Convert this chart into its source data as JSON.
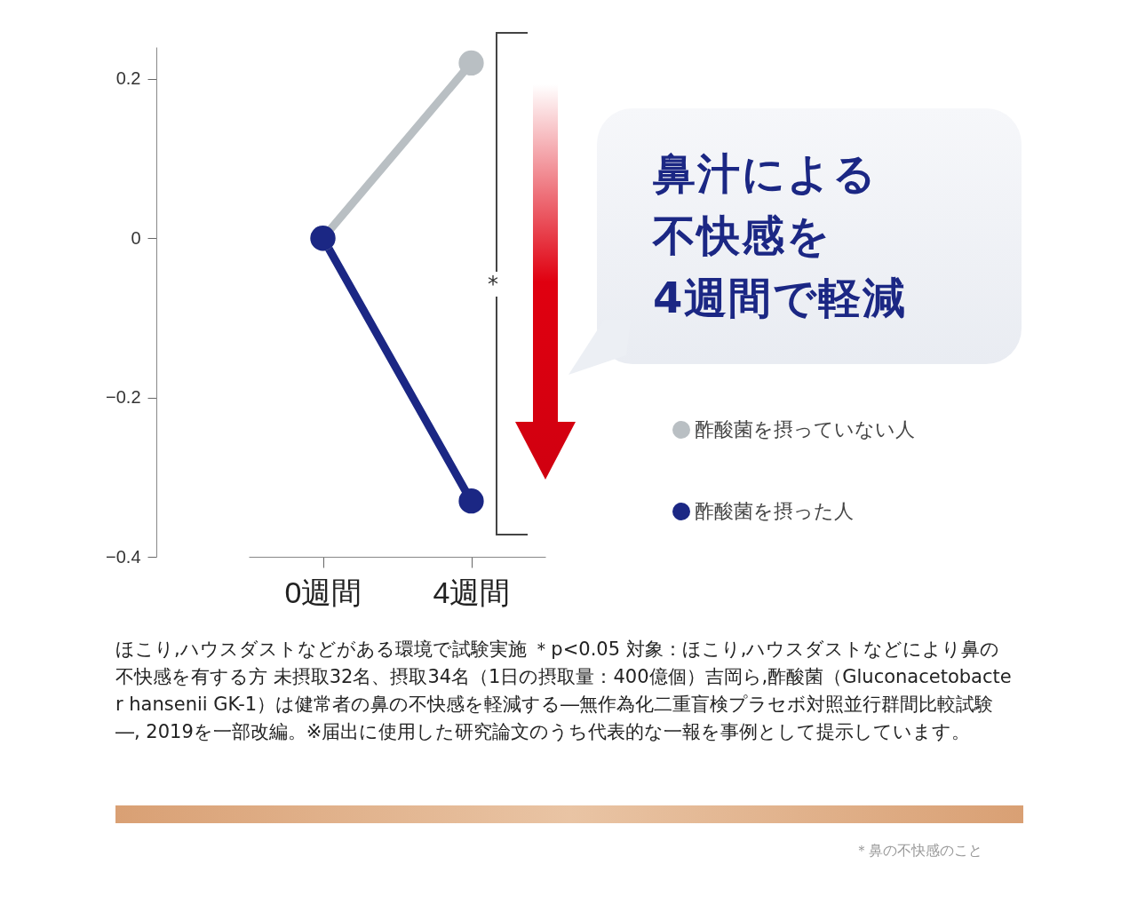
{
  "chart_data": {
    "type": "line",
    "categories": [
      "0週間",
      "4週間"
    ],
    "series": [
      {
        "name": "酢酸菌を摂っていない人",
        "color": "#b9bfc3",
        "values": [
          0,
          0.22
        ]
      },
      {
        "name": "酢酸菌を摂った人",
        "color": "#1b2784",
        "values": [
          0,
          -0.33
        ]
      }
    ],
    "ylim": [
      -0.4,
      0.24
    ],
    "yticks": [
      -0.4,
      -0.2,
      0,
      0.2
    ],
    "marker": "circle",
    "line_style": "solid",
    "grid": false,
    "legend": "right",
    "annotations": [
      "*",
      "鼻汁による",
      "不快感を",
      "4週間で軽減",
      "ほこり,ハウスダストなどがある環境で試験実施 ＊p<0.05 対象：ほこり,ハウスダストなどにより鼻の不快感を有する方  未摂取32名、摂取34名（1日の摂取量：400億個）吉岡ら,酢酸菌（Gluconacetobacter hansenii GK-1）は健常者の鼻の不快感を軽減する―無作為化二重盲検プラセボ対照並行群間比較試験―, 2019を一部改編。※届出に使用した研究論文のうち代表的な一報を事例として提示しています。",
      "＊鼻の不快感のこと"
    ]
  }
}
